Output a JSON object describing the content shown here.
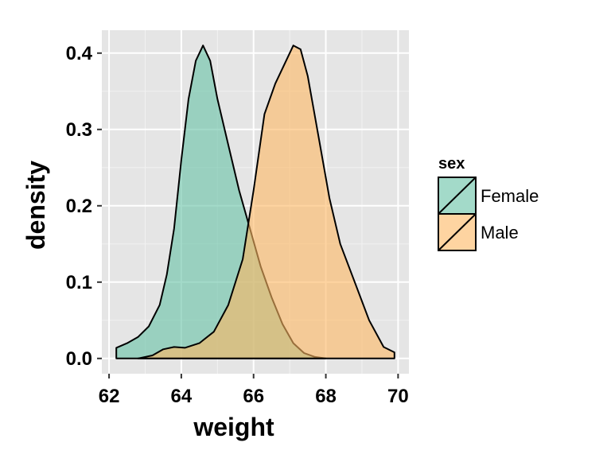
{
  "chart_data": {
    "type": "area",
    "subtype": "density",
    "xlabel": "weight",
    "ylabel": "density",
    "xlim": [
      61.8,
      70.3
    ],
    "ylim": [
      -0.02,
      0.43
    ],
    "x_ticks": [
      62,
      64,
      66,
      68,
      70
    ],
    "y_ticks": [
      0.0,
      0.1,
      0.2,
      0.3,
      0.4
    ],
    "x_tick_labels": [
      "62",
      "64",
      "66",
      "68",
      "70"
    ],
    "y_tick_labels": [
      "0.0",
      "0.1",
      "0.2",
      "0.3",
      "0.4"
    ],
    "grid": true,
    "panel_background": "#E5E5E5",
    "legend": {
      "title": "sex",
      "position": "right",
      "entries": [
        "Female",
        "Male"
      ]
    },
    "series": [
      {
        "name": "Female",
        "color": "#66C2A5",
        "x": [
          62.2,
          62.5,
          62.8,
          63.1,
          63.4,
          63.6,
          63.8,
          64.0,
          64.2,
          64.4,
          64.6,
          64.8,
          65.0,
          65.3,
          65.6,
          65.9,
          66.2,
          66.5,
          66.8,
          67.1,
          67.4,
          67.7,
          68.0
        ],
        "y": [
          0.014,
          0.02,
          0.028,
          0.042,
          0.07,
          0.11,
          0.17,
          0.26,
          0.34,
          0.39,
          0.41,
          0.39,
          0.34,
          0.28,
          0.22,
          0.17,
          0.12,
          0.08,
          0.045,
          0.02,
          0.007,
          0.002,
          0.0
        ]
      },
      {
        "name": "Male",
        "color": "#FDB863",
        "x": [
          62.8,
          63.2,
          63.5,
          63.8,
          64.1,
          64.5,
          64.9,
          65.3,
          65.7,
          66.0,
          66.3,
          66.6,
          66.9,
          67.1,
          67.3,
          67.5,
          67.8,
          68.1,
          68.4,
          68.8,
          69.2,
          69.6,
          69.9
        ],
        "y": [
          0.0,
          0.004,
          0.012,
          0.015,
          0.014,
          0.02,
          0.035,
          0.07,
          0.13,
          0.22,
          0.32,
          0.36,
          0.39,
          0.41,
          0.405,
          0.37,
          0.29,
          0.21,
          0.15,
          0.1,
          0.05,
          0.015,
          0.008
        ]
      }
    ]
  }
}
